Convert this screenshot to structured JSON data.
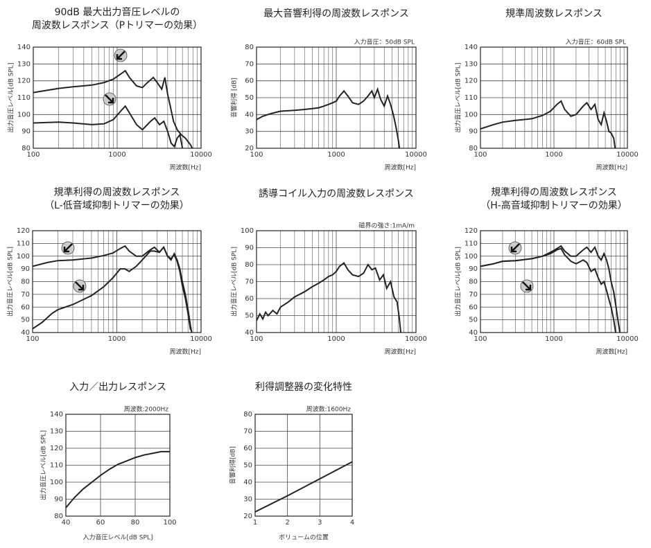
{
  "chart_data": [
    {
      "type": "line",
      "title": [
        "90dB 最大出力音圧レベルの",
        "周波数レスポンス（Pトリマーの効果）"
      ],
      "xlabel": "周波数[Hz]",
      "ylabel": "出力音圧レベル[dB SPL]",
      "xscale": "log",
      "xlim": [
        100,
        10000
      ],
      "xticks": [
        100,
        1000,
        10000
      ],
      "xminorticks": [
        200,
        300,
        400,
        500,
        600,
        700,
        800,
        900,
        2000,
        3000,
        4000,
        5000,
        6000,
        7000,
        8000,
        9000
      ],
      "ylim": [
        80,
        140
      ],
      "yticks": [
        80,
        90,
        100,
        110,
        120,
        130,
        140
      ],
      "grid": true,
      "series": [
        {
          "color": "#222222",
          "x": [
            100,
            150,
            200,
            300,
            500,
            700,
            900,
            1100,
            1250,
            1400,
            1700,
            2000,
            2300,
            2700,
            3000,
            3400,
            3700,
            4000,
            4300,
            4700,
            5200,
            5800,
            6500,
            7500,
            8200
          ],
          "values": [
            113,
            114.5,
            115.5,
            116.5,
            117.5,
            119,
            121,
            124,
            126,
            122,
            117,
            116,
            119,
            122,
            119,
            115,
            122,
            112,
            105,
            96,
            91,
            88,
            86,
            82,
            78
          ]
        },
        {
          "color": "#222222",
          "x": [
            100,
            200,
            300,
            500,
            700,
            900,
            1100,
            1250,
            1400,
            1700,
            2000,
            2500,
            2800,
            3200,
            3600,
            4000,
            4400,
            4800,
            5200,
            5600,
            6000,
            6500
          ],
          "values": [
            95,
            95.5,
            95,
            94,
            94.5,
            97,
            102,
            105,
            101,
            94,
            91,
            96,
            98,
            94,
            96,
            90,
            83,
            81,
            86,
            88,
            80,
            76
          ]
        }
      ]
    },
    {
      "type": "line",
      "title": [
        "最大音響利得の周波数レスポンス"
      ],
      "annotation": "入力音圧：50dB SPL",
      "xlabel": "周波数[Hz]",
      "ylabel": "音響利得 [dB]",
      "xscale": "log",
      "xlim": [
        100,
        10000
      ],
      "xticks": [
        100,
        1000,
        10000
      ],
      "xminorticks": [
        200,
        300,
        400,
        500,
        600,
        700,
        800,
        900,
        2000,
        3000,
        4000,
        5000,
        6000,
        7000,
        8000,
        9000
      ],
      "ylim": [
        20,
        80
      ],
      "yticks": [
        20,
        30,
        40,
        50,
        60,
        70,
        80
      ],
      "grid": true,
      "series": [
        {
          "color": "#222222",
          "x": [
            100,
            120,
            150,
            200,
            300,
            400,
            500,
            600,
            700,
            800,
            900,
            1000,
            1100,
            1250,
            1400,
            1600,
            1900,
            2200,
            2500,
            2800,
            3000,
            3300,
            3600,
            4000,
            4400,
            4800,
            5200,
            5600,
            6000,
            6300
          ],
          "values": [
            37,
            39,
            40.5,
            42,
            42.5,
            43,
            43.5,
            44,
            45,
            46,
            47,
            48,
            51,
            54,
            51,
            47,
            46,
            48,
            51,
            54,
            50,
            55,
            49,
            45,
            51,
            46,
            40,
            33,
            25,
            18
          ]
        }
      ]
    },
    {
      "type": "line",
      "title": [
        "規準周波数レスポンス"
      ],
      "annotation": "入力音圧：60dB SPL",
      "xlabel": "周波数[Hz]",
      "ylabel": "出力音圧レベル[dB SPL]",
      "xscale": "log",
      "xlim": [
        100,
        10000
      ],
      "xticks": [
        100,
        1000,
        10000
      ],
      "xminorticks": [
        200,
        300,
        400,
        500,
        600,
        700,
        800,
        900,
        2000,
        3000,
        4000,
        5000,
        6000,
        7000,
        8000,
        9000
      ],
      "ylim": [
        80,
        140
      ],
      "yticks": [
        80,
        90,
        100,
        110,
        120,
        130,
        140
      ],
      "grid": true,
      "series": [
        {
          "color": "#222222",
          "x": [
            100,
            150,
            200,
            300,
            500,
            700,
            900,
            1100,
            1250,
            1400,
            1700,
            2000,
            2500,
            2800,
            3200,
            3600,
            4000,
            4400,
            4800,
            5200,
            5600,
            6000,
            6500,
            7000
          ],
          "values": [
            91.5,
            94,
            95.5,
            96.5,
            97.5,
            99.5,
            102,
            106,
            108,
            103,
            99,
            100,
            105,
            107,
            103,
            106,
            97,
            94,
            101,
            96,
            90,
            89,
            86,
            76
          ]
        }
      ]
    },
    {
      "type": "line",
      "title": [
        "規準利得の周波数レスポンス",
        "（L-低音域抑制トリマーの効果）"
      ],
      "xlabel": "周波数[Hz]",
      "ylabel": "出力音圧レベル[dB SPL]",
      "xscale": "log",
      "xlim": [
        100,
        10000
      ],
      "xticks": [
        100,
        1000,
        10000
      ],
      "xminorticks": [
        200,
        300,
        400,
        500,
        600,
        700,
        800,
        900,
        2000,
        3000,
        4000,
        5000,
        6000,
        7000,
        8000,
        9000
      ],
      "ylim": [
        40,
        120
      ],
      "yticks": [
        40,
        50,
        60,
        70,
        80,
        90,
        100,
        110,
        120
      ],
      "grid": true,
      "series": [
        {
          "color": "#222222",
          "x": [
            100,
            150,
            200,
            300,
            500,
            700,
            900,
            1100,
            1250,
            1400,
            1700,
            2000,
            2500,
            2800,
            3200,
            3600,
            4000,
            4400,
            4800,
            5200,
            5600,
            6000,
            6500,
            7000,
            7500,
            8000
          ],
          "values": [
            92,
            95,
            96.5,
            97,
            98.5,
            100.5,
            102.5,
            106,
            108,
            104,
            100,
            100,
            105,
            107,
            103,
            107,
            100,
            97,
            102,
            97,
            90,
            80,
            70,
            58,
            45,
            35
          ]
        },
        {
          "color": "#222222",
          "x": [
            100,
            130,
            170,
            200,
            300,
            500,
            700,
            900,
            1100,
            1250,
            1400,
            1700,
            2000,
            2500,
            2800,
            3200,
            3600,
            4000,
            4400,
            4800,
            5200,
            5600,
            6000,
            6500,
            7000,
            7500
          ],
          "values": [
            43,
            48,
            55,
            58,
            62,
            69,
            76,
            83,
            90,
            90,
            88,
            92,
            97,
            104,
            104,
            103,
            107,
            100,
            98,
            101,
            96,
            88,
            77,
            67,
            55,
            42
          ]
        }
      ]
    },
    {
      "type": "line",
      "title": [
        "誘導コイル入力の周波数レスポンス"
      ],
      "annotation": "磁界の強さ:1mA/m",
      "xlabel": "周波数[Hz]",
      "ylabel": "出力音圧レベル[dB SPL]",
      "xscale": "log",
      "xlim": [
        100,
        10000
      ],
      "xticks": [
        100,
        1000,
        10000
      ],
      "xminorticks": [
        200,
        300,
        400,
        500,
        600,
        700,
        800,
        900,
        2000,
        3000,
        4000,
        5000,
        6000,
        7000,
        8000,
        9000
      ],
      "ylim": [
        40,
        100
      ],
      "yticks": [
        40,
        50,
        60,
        70,
        80,
        90,
        100
      ],
      "grid": true,
      "series": [
        {
          "color": "#222222",
          "x": [
            100,
            110,
            120,
            130,
            140,
            160,
            180,
            200,
            250,
            300,
            400,
            500,
            600,
            700,
            800,
            900,
            1000,
            1100,
            1250,
            1400,
            1600,
            1900,
            2200,
            2500,
            2800,
            3100,
            3500,
            3900,
            4300,
            4800,
            5300,
            5800,
            6200,
            6500
          ],
          "values": [
            47,
            51,
            48,
            52,
            50,
            53,
            51,
            55,
            58,
            61,
            64,
            67,
            69,
            71,
            73,
            74,
            76,
            79,
            81,
            77,
            74,
            73,
            75,
            80,
            77,
            78,
            71,
            74,
            66,
            70,
            61,
            58,
            48,
            38
          ]
        }
      ]
    },
    {
      "type": "line",
      "title": [
        "規準利得の周波数レスポンス",
        "（H-高音域抑制トリマーの効果）"
      ],
      "xlabel": "周波数[Hz]",
      "ylabel": "出力音圧レベル[dB SPL]",
      "xscale": "log",
      "xlim": [
        100,
        10000
      ],
      "xticks": [
        100,
        1000,
        10000
      ],
      "xminorticks": [
        200,
        300,
        400,
        500,
        600,
        700,
        800,
        900,
        2000,
        3000,
        4000,
        5000,
        6000,
        7000,
        8000,
        9000
      ],
      "ylim": [
        40,
        120
      ],
      "yticks": [
        40,
        50,
        60,
        70,
        80,
        90,
        100,
        110,
        120
      ],
      "grid": true,
      "series": [
        {
          "color": "#222222",
          "x": [
            100,
            150,
            200,
            300,
            500,
            700,
            900,
            1100,
            1250,
            1400,
            1700,
            2000,
            2500,
            2800,
            3200,
            3600,
            4000,
            4400,
            4800,
            5200,
            5600,
            6000,
            6500,
            7000,
            7500,
            8000
          ],
          "values": [
            92,
            94,
            96,
            96.5,
            98,
            100,
            103,
            106,
            108,
            104,
            100,
            100,
            105,
            107,
            103,
            107,
            100,
            97,
            102,
            97,
            90,
            80,
            72,
            60,
            48,
            38
          ]
        },
        {
          "color": "#222222",
          "x": [
            100,
            150,
            200,
            300,
            500,
            700,
            900,
            1100,
            1250,
            1400,
            1700,
            2000,
            2500,
            2800,
            3200,
            3600,
            4000,
            4400,
            4800,
            5200,
            5600,
            6000,
            6500,
            7000
          ],
          "values": [
            92,
            94,
            96,
            96.5,
            98,
            100,
            102,
            105,
            106,
            101,
            96,
            94,
            97,
            95,
            88,
            90,
            83,
            78,
            80,
            73,
            66,
            60,
            50,
            38
          ]
        }
      ]
    },
    {
      "type": "line",
      "title": [
        "入力／出力レスポンス"
      ],
      "annotation": "周波数:2000Hz",
      "xlabel": "入力音圧レベル[dB SPL]",
      "ylabel": "出力音圧レベル[dB SPL]",
      "xscale": "linear",
      "xlim": [
        40,
        100
      ],
      "xticks": [
        40,
        60,
        80,
        100
      ],
      "ylim": [
        80,
        140
      ],
      "yticks": [
        80,
        90,
        100,
        110,
        120,
        130,
        140
      ],
      "grid": true,
      "series": [
        {
          "color": "#222222",
          "x": [
            40,
            45,
            50,
            55,
            60,
            65,
            70,
            75,
            80,
            85,
            90,
            95,
            100
          ],
          "values": [
            85,
            91,
            96,
            100,
            104,
            107.5,
            110.5,
            112.5,
            114.5,
            116,
            117,
            118,
            118
          ]
        }
      ]
    },
    {
      "type": "line",
      "title": [
        "利得調整器の変化特性"
      ],
      "annotation": "周波数:1600Hz",
      "xlabel": "ボリュームの位置",
      "ylabel": "音響利得[dB]",
      "xscale": "linear",
      "xlim": [
        1,
        4
      ],
      "xticks": [
        1,
        2,
        3,
        4
      ],
      "ylim": [
        20,
        80
      ],
      "yticks": [
        20,
        30,
        40,
        50,
        60,
        70,
        80
      ],
      "grid": true,
      "series": [
        {
          "color": "#222222",
          "x": [
            1,
            2,
            3,
            4
          ],
          "values": [
            22.5,
            32,
            42,
            52
          ]
        }
      ]
    }
  ]
}
